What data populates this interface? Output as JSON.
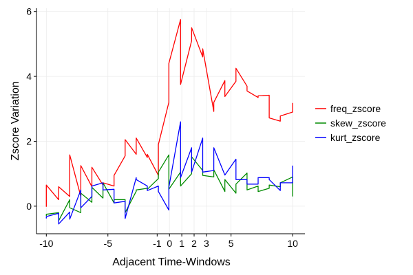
{
  "chart_data": {
    "type": "line",
    "title": "",
    "xlabel": "Adjacent Time-Windows",
    "ylabel": "Zscore Variation",
    "xlim": [
      -10.8,
      11
    ],
    "ylim": [
      -0.85,
      6.1
    ],
    "xticks": [
      -10,
      -5,
      -1,
      0,
      1,
      2,
      3,
      5,
      10
    ],
    "yticks": [
      0,
      2,
      4,
      6
    ],
    "grid": true,
    "legend_position": "right",
    "series": [
      {
        "name": "freq_zscore",
        "color": "#ff0000",
        "x": [
          -10,
          -10,
          -9,
          -9,
          -8.1,
          -8.1,
          -7.2,
          -7.2,
          -6.3,
          -6.3,
          -5.4,
          -5.4,
          -4.5,
          -4.5,
          -3.6,
          -3.6,
          -2.7,
          -2.7,
          -1.8,
          -1.8,
          -0.9,
          -0.9,
          -0.05,
          -0.05,
          0.9,
          0.9,
          1.8,
          1.8,
          2.7,
          2.7,
          3.6,
          3.6,
          4.5,
          4.5,
          5.4,
          5.4,
          6.3,
          6.3,
          7.2,
          7.2,
          8.1,
          8.1,
          9,
          9,
          10,
          10
        ],
        "y": [
          -0.02,
          0.65,
          0.2,
          0.6,
          0.3,
          1.58,
          0.3,
          1.25,
          0.6,
          1.2,
          0.65,
          0.72,
          0.62,
          0.95,
          1.55,
          2.05,
          1.6,
          2.1,
          1.5,
          1.6,
          0.95,
          1.9,
          3.2,
          4.4,
          5.75,
          3.75,
          5.1,
          5.5,
          4.6,
          4.85,
          2.92,
          3.2,
          3.87,
          3.38,
          3.85,
          4.25,
          3.7,
          3.55,
          3.35,
          3.4,
          3.42,
          2.72,
          2.62,
          2.78,
          2.9,
          3.18
        ]
      },
      {
        "name": "skew_zscore",
        "color": "#008b00",
        "x": [
          -10,
          -10,
          -9,
          -9,
          -8.1,
          -8.1,
          -7.2,
          -7.2,
          -6.3,
          -6.3,
          -5.4,
          -5.4,
          -4.5,
          -4.5,
          -3.6,
          -3.6,
          -2.7,
          -2.7,
          -1.8,
          -1.8,
          -0.9,
          -0.9,
          -0.05,
          -0.05,
          0.9,
          0.9,
          1.8,
          1.8,
          2.7,
          2.7,
          3.6,
          3.6,
          4.5,
          4.5,
          5.4,
          5.4,
          6.3,
          6.3,
          7.2,
          7.2,
          8.1,
          8.1,
          9,
          9,
          10,
          10
        ],
        "y": [
          -0.3,
          -0.25,
          -0.2,
          -0.45,
          0.2,
          -0.05,
          -0.2,
          0.4,
          0.12,
          0.58,
          0.25,
          0.72,
          0.1,
          0.2,
          0.2,
          -0.2,
          0.46,
          0.5,
          0.55,
          0.52,
          0.85,
          1.05,
          1.58,
          0.52,
          1.05,
          0.62,
          1.0,
          1.52,
          1.1,
          0.95,
          0.9,
          1.12,
          0.45,
          0.82,
          0.4,
          0.68,
          1.02,
          0.5,
          0.62,
          0.45,
          0.55,
          0.65,
          0.6,
          0.72,
          0.9,
          0.3
        ]
      },
      {
        "name": "kurt_zscore",
        "color": "#0000ff",
        "x": [
          -10,
          -10,
          -9,
          -9,
          -8.1,
          -8.1,
          -7.2,
          -7.2,
          -6.3,
          -6.3,
          -5.4,
          -5.4,
          -4.5,
          -4.5,
          -3.6,
          -3.6,
          -2.7,
          -2.7,
          -1.8,
          -1.8,
          -0.9,
          -0.9,
          -0.05,
          -0.05,
          0.9,
          0.9,
          1.8,
          1.8,
          2.7,
          2.7,
          3.6,
          3.6,
          4.5,
          4.5,
          5.4,
          5.4,
          6.3,
          6.3,
          7.2,
          7.2,
          8.1,
          8.1,
          9,
          9,
          10,
          10
        ],
        "y": [
          -0.38,
          -0.32,
          -0.22,
          -0.55,
          -0.18,
          -0.4,
          0.5,
          -0.05,
          0.3,
          0.62,
          0.72,
          0.5,
          0.52,
          0.1,
          0.15,
          -0.38,
          0.88,
          0.82,
          0.62,
          0.48,
          0.62,
          0.45,
          -0.12,
          0.58,
          2.6,
          0.88,
          1.8,
          1.05,
          2.1,
          1.05,
          1.1,
          1.8,
          0.96,
          0.96,
          1.45,
          0.82,
          0.82,
          0.68,
          0.68,
          0.88,
          0.88,
          0.82,
          0.48,
          0.72,
          0.72,
          1.25
        ]
      }
    ]
  }
}
